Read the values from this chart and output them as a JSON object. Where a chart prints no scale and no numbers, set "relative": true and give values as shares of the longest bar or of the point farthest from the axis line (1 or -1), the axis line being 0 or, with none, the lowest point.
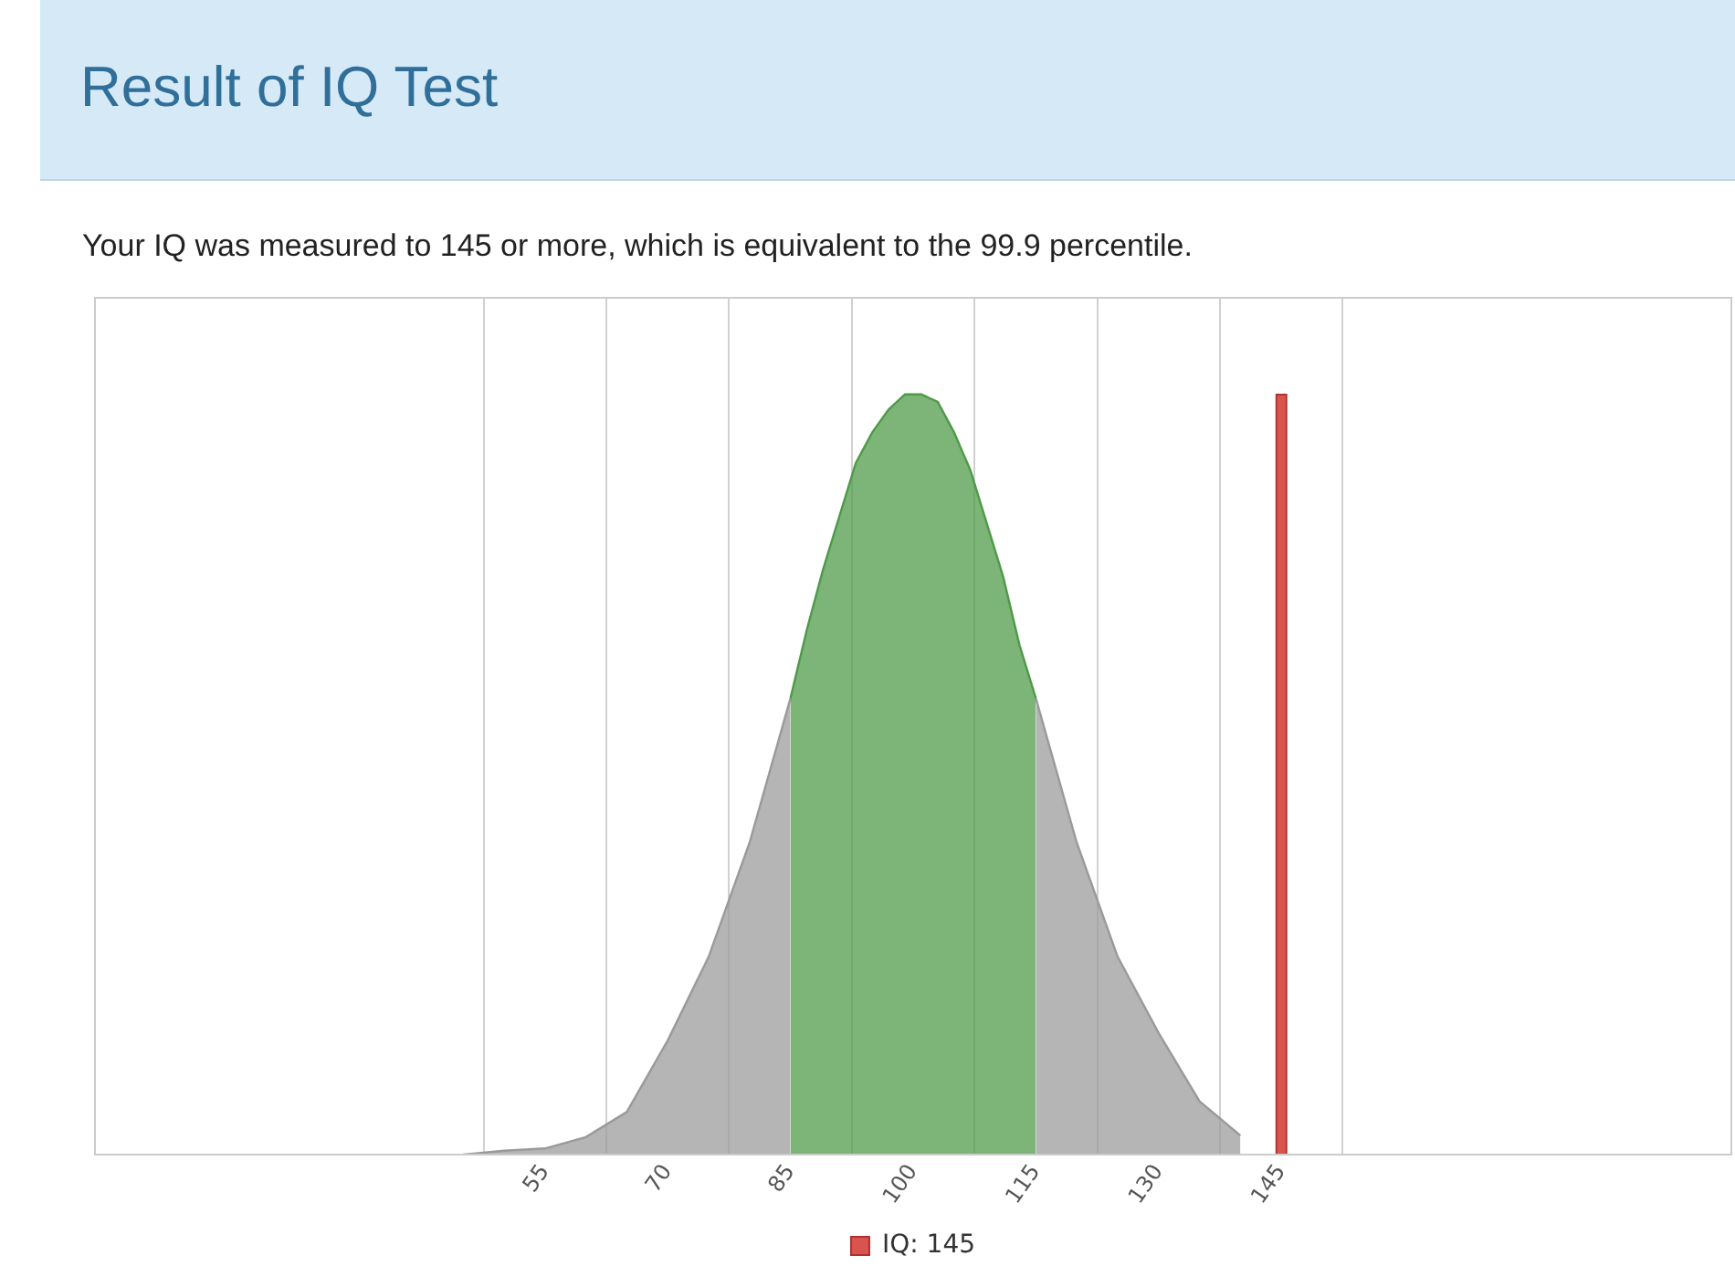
{
  "chart_data": {
    "type": "area",
    "title": "Result of IQ Test",
    "subtitle": "Your IQ was measured to 145 or more, which is equivalent to the 99.9 percentile.",
    "relative": true,
    "xlim": [
      0,
      200
    ],
    "xticks": [
      55,
      70,
      85,
      100,
      115,
      130,
      145
    ],
    "grid": "x",
    "legend": "bottom",
    "series": [
      {
        "color": "#9a9a9a",
        "x": [
          45,
          50,
          55,
          60,
          65,
          70,
          75,
          80,
          85,
          100,
          115,
          120,
          125,
          130,
          135,
          140
        ],
        "values": [
          0,
          0.005,
          0.008,
          0.023,
          0.056,
          0.15,
          0.26,
          0.41,
          0.6,
          null,
          0.6,
          0.41,
          0.26,
          0.16,
          0.07,
          0.025
        ]
      },
      {
        "type": "area",
        "color": "#4e9a48",
        "x": [
          85,
          87,
          89,
          91,
          93,
          95,
          97,
          99,
          101,
          103,
          105,
          107,
          109,
          111,
          113,
          115
        ],
        "values": [
          0.6,
          0.69,
          0.77,
          0.84,
          0.91,
          0.95,
          0.98,
          1,
          1,
          0.99,
          0.95,
          0.9,
          0.83,
          0.76,
          0.67,
          0.6
        ]
      },
      {
        "type": "bar",
        "name": "IQ: 145",
        "color": "#d9534f",
        "x": [
          145
        ],
        "values": [
          1
        ]
      }
    ]
  }
}
